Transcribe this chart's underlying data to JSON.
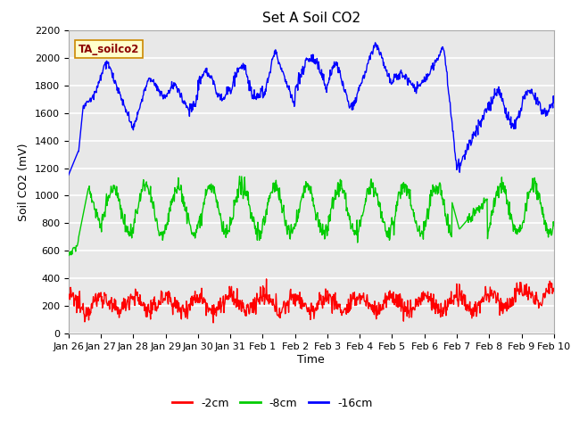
{
  "title": "Set A Soil CO2",
  "ylabel": "Soil CO2 (mV)",
  "xlabel": "Time",
  "annotation": "TA_soilco2",
  "legend_labels": [
    "-2cm",
    "-8cm",
    "-16cm"
  ],
  "legend_colors": [
    "#ff0000",
    "#00cc00",
    "#0000ff"
  ],
  "ylim": [
    0,
    2200
  ],
  "background_color": "#ffffff",
  "plot_bg_color": "#e8e8e8",
  "grid_color": "#ffffff",
  "tick_labels": [
    "Jan 26",
    "Jan 27",
    "Jan 28",
    "Jan 29",
    "Jan 30",
    "Jan 31",
    "Feb 1",
    "Feb 2",
    "Feb 3",
    "Feb 4",
    "Feb 5",
    "Feb 6",
    "Feb 7",
    "Feb 8",
    "Feb 9",
    "Feb 10"
  ],
  "title_fontsize": 11,
  "axis_fontsize": 9,
  "tick_fontsize": 8
}
